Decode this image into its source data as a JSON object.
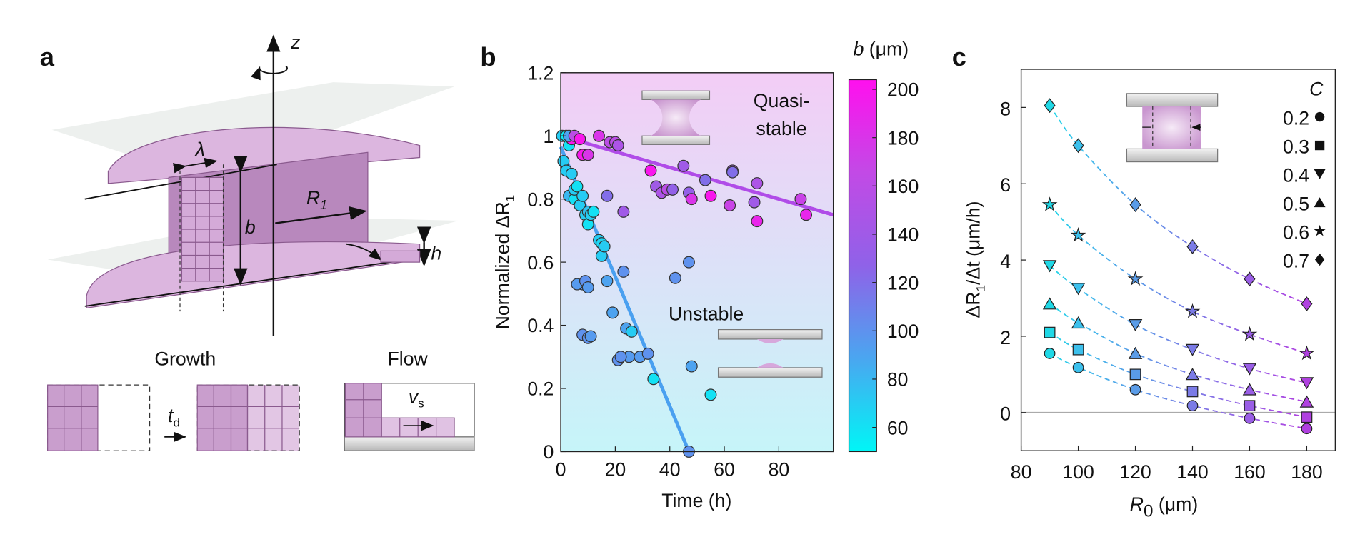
{
  "diagram": {
    "panel_label": "a",
    "z": "z",
    "lambda": "λ",
    "b": "b",
    "R": "R",
    "R_sub": "1",
    "h": "h",
    "growth": "Growth",
    "flow": "Flow",
    "t": "t",
    "t_sub": "d",
    "v": "v",
    "v_sub": "s"
  },
  "chart_data": [
    {
      "type": "scatter",
      "panel_label": "b",
      "x_label": "Time (h)",
      "y_label": {
        "text": "Normalized  ΔR",
        "sub": "1"
      },
      "xlim": [
        0,
        100
      ],
      "xticks": [
        0,
        20,
        40,
        60,
        80
      ],
      "ylim": [
        0,
        1.2
      ],
      "yticks": [
        0,
        0.2,
        0.4,
        0.6,
        0.8,
        1,
        1.2
      ],
      "annotations": [
        "Quasi-",
        "stable",
        "Unstable"
      ],
      "colorbar_label": {
        "var": "b",
        "unit": " (μm)"
      },
      "clim": [
        50,
        204
      ],
      "cticks": [
        60,
        80,
        100,
        120,
        140,
        160,
        180,
        200
      ],
      "colormap": [
        "#00f6f6",
        "#4aa6f0",
        "#8f62e8",
        "#c24ae6",
        "#ff10ee"
      ],
      "x": [
        0.5,
        2,
        3,
        4,
        3,
        5,
        7,
        8,
        10,
        14,
        18,
        20,
        21,
        17,
        23,
        33,
        35,
        37,
        39,
        41,
        45,
        47,
        48,
        53,
        55,
        62,
        63,
        72,
        72,
        71,
        88,
        90,
        63,
        1,
        2,
        3,
        4,
        5,
        5,
        6,
        7,
        8,
        9,
        10,
        10,
        11,
        12,
        14,
        15,
        15,
        16,
        17,
        19,
        8,
        6,
        9,
        10,
        8,
        10,
        11,
        21,
        23,
        24,
        25,
        26,
        29,
        32,
        34,
        42,
        47,
        47,
        48,
        55,
        22
      ],
      "y": [
        1.0,
        1.0,
        0.97,
        0.99,
        1.0,
        1.0,
        0.99,
        0.94,
        0.94,
        1.0,
        0.98,
        0.98,
        0.97,
        0.81,
        0.76,
        0.89,
        0.84,
        0.82,
        0.83,
        0.83,
        0.905,
        0.82,
        0.8,
        0.86,
        0.81,
        0.78,
        0.89,
        0.85,
        0.73,
        0.79,
        0.8,
        0.75,
        0.885,
        0.92,
        0.89,
        0.81,
        0.88,
        0.8,
        0.83,
        0.84,
        0.78,
        0.81,
        0.75,
        0.72,
        0.76,
        0.75,
        0.76,
        0.67,
        0.66,
        0.62,
        0.65,
        0.54,
        0.44,
        0.53,
        0.53,
        0.54,
        0.52,
        0.37,
        0.36,
        0.365,
        0.29,
        0.57,
        0.39,
        0.3,
        0.38,
        0.3,
        0.31,
        0.23,
        0.55,
        0.6,
        0.0,
        0.27,
        0.18,
        0.3
      ],
      "b": [
        70,
        55,
        60,
        200,
        90,
        160,
        200,
        200,
        180,
        180,
        160,
        160,
        150,
        120,
        140,
        200,
        140,
        150,
        160,
        130,
        140,
        130,
        180,
        120,
        200,
        170,
        150,
        150,
        190,
        140,
        170,
        190,
        120,
        70,
        70,
        80,
        70,
        60,
        70,
        60,
        70,
        70,
        70,
        60,
        75,
        70,
        60,
        70,
        65,
        70,
        70,
        90,
        90,
        100,
        95,
        100,
        95,
        100,
        100,
        95,
        100,
        100,
        90,
        95,
        70,
        95,
        100,
        60,
        100,
        100,
        100,
        90,
        60,
        100
      ],
      "fit_lines": [
        {
          "x": [
            0,
            100
          ],
          "y": [
            1.0,
            0.75
          ],
          "color": "#b04ce8"
        },
        {
          "x": [
            0,
            47
          ],
          "y": [
            0.965,
            0
          ],
          "color": "#4aa0f0"
        }
      ]
    },
    {
      "type": "line",
      "panel_label": "c",
      "x_label": {
        "pre": "R",
        "sub": "0",
        "post": " (μm)"
      },
      "y_label": {
        "pre": "ΔR",
        "sub": "1",
        "post": "/Δt (μm/h)"
      },
      "xlim": [
        80,
        190
      ],
      "xticks": [
        80,
        100,
        120,
        140,
        160,
        180
      ],
      "ylim": [
        -1,
        9
      ],
      "yticks": [
        0,
        2,
        4,
        6,
        8
      ],
      "reference_line": 0,
      "legend_title": "C",
      "legend": "upper right",
      "x": [
        90,
        100,
        120,
        140,
        160,
        180
      ],
      "point_colors": [
        "#1fd8e6",
        "#3cc0ec",
        "#5a9ce8",
        "#7b7be6",
        "#9a5ee6",
        "#b040e0"
      ],
      "series": [
        {
          "name": "0.2",
          "marker": "circle",
          "values": [
            1.55,
            1.18,
            0.6,
            0.18,
            -0.15,
            -0.42
          ]
        },
        {
          "name": "0.3",
          "marker": "square",
          "values": [
            2.1,
            1.65,
            1.0,
            0.55,
            0.18,
            -0.12
          ]
        },
        {
          "name": "0.4",
          "marker": "triangle-down",
          "values": [
            3.85,
            3.25,
            2.3,
            1.65,
            1.15,
            0.78
          ]
        },
        {
          "name": "0.5",
          "marker": "triangle-up",
          "values": [
            2.85,
            2.35,
            1.55,
            1.0,
            0.6,
            0.28
          ]
        },
        {
          "name": "0.6",
          "marker": "star",
          "values": [
            5.45,
            4.65,
            3.5,
            2.65,
            2.05,
            1.55
          ]
        },
        {
          "name": "0.7",
          "marker": "diamond",
          "values": [
            8.05,
            7.0,
            5.45,
            4.35,
            3.5,
            2.85
          ]
        }
      ]
    }
  ]
}
